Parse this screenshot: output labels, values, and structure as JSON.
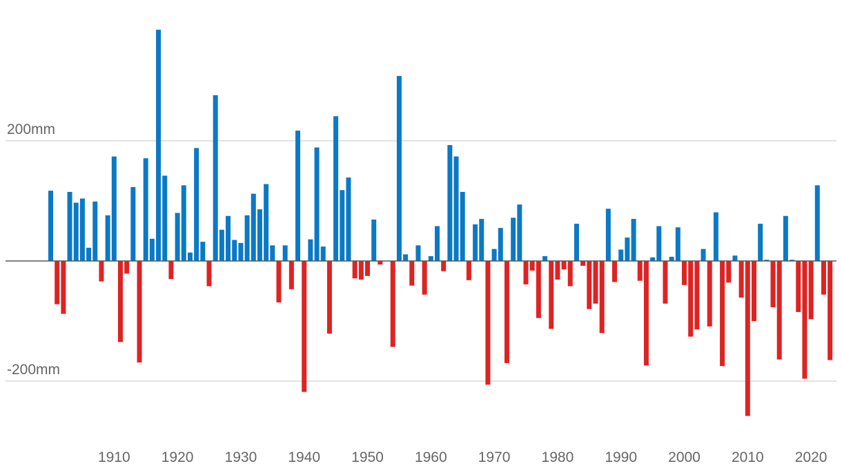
{
  "chart_data": {
    "type": "bar",
    "title": "",
    "xlabel": "",
    "ylabel": "",
    "unit": "mm",
    "ylim": [
      -280,
      400
    ],
    "x_range": [
      1900,
      2024
    ],
    "y_ticks": [
      {
        "value": 200,
        "label": "200mm"
      },
      {
        "value": -200,
        "label": "-200mm"
      }
    ],
    "x_ticks": [
      1910,
      1920,
      1930,
      1940,
      1950,
      1960,
      1970,
      1980,
      1990,
      2000,
      2010,
      2020
    ],
    "grid": true,
    "legend": "none",
    "colors": {
      "positive": "#0a79c6",
      "negative": "#de2323",
      "gridline": "#d9d9d9",
      "baseline": "#555555",
      "label": "#666666"
    },
    "x": [
      1900,
      1901,
      1902,
      1903,
      1904,
      1905,
      1906,
      1907,
      1908,
      1909,
      1910,
      1911,
      1912,
      1913,
      1914,
      1915,
      1916,
      1917,
      1918,
      1919,
      1920,
      1921,
      1922,
      1923,
      1924,
      1925,
      1926,
      1927,
      1928,
      1929,
      1930,
      1931,
      1932,
      1933,
      1934,
      1935,
      1936,
      1937,
      1938,
      1939,
      1940,
      1941,
      1942,
      1943,
      1944,
      1945,
      1946,
      1947,
      1948,
      1949,
      1950,
      1951,
      1952,
      1953,
      1954,
      1955,
      1956,
      1957,
      1958,
      1959,
      1960,
      1961,
      1962,
      1963,
      1964,
      1965,
      1966,
      1967,
      1968,
      1969,
      1970,
      1971,
      1972,
      1973,
      1974,
      1975,
      1976,
      1977,
      1978,
      1979,
      1980,
      1981,
      1982,
      1983,
      1984,
      1985,
      1986,
      1987,
      1988,
      1989,
      1990,
      1991,
      1992,
      1993,
      1994,
      1995,
      1996,
      1997,
      1998,
      1999,
      2000,
      2001,
      2002,
      2003,
      2004,
      2005,
      2006,
      2007,
      2008,
      2009,
      2010,
      2011,
      2012,
      2013,
      2014,
      2015,
      2016,
      2017,
      2018,
      2019,
      2020,
      2021,
      2022,
      2023
    ],
    "values": [
      117,
      -72,
      -88,
      115,
      97,
      104,
      22,
      99,
      -34,
      76,
      174,
      -135,
      -21,
      123,
      -169,
      171,
      37,
      385,
      142,
      -30,
      80,
      126,
      14,
      188,
      32,
      -42,
      276,
      52,
      75,
      35,
      30,
      76,
      112,
      86,
      128,
      26,
      -69,
      26,
      -47,
      217,
      -218,
      36,
      189,
      24,
      -121,
      241,
      118,
      139,
      -29,
      -31,
      -25,
      69,
      -6,
      0,
      -143,
      308,
      11,
      -41,
      26,
      -56,
      8,
      58,
      -17,
      193,
      174,
      115,
      -32,
      61,
      70,
      -206,
      20,
      55,
      -170,
      72,
      94,
      -39,
      -16,
      -95,
      8,
      -113,
      -31,
      -14,
      -42,
      62,
      -8,
      -80,
      -71,
      -120,
      87,
      -35,
      19,
      39,
      70,
      -33,
      -174,
      6,
      58,
      -71,
      7,
      56,
      -40,
      -126,
      -114,
      20,
      -109,
      81,
      -175,
      -36,
      9,
      -61,
      -258,
      -100,
      62,
      2,
      -77,
      -164,
      75,
      2,
      -85,
      -196,
      -97,
      126,
      -56,
      -165
    ]
  }
}
